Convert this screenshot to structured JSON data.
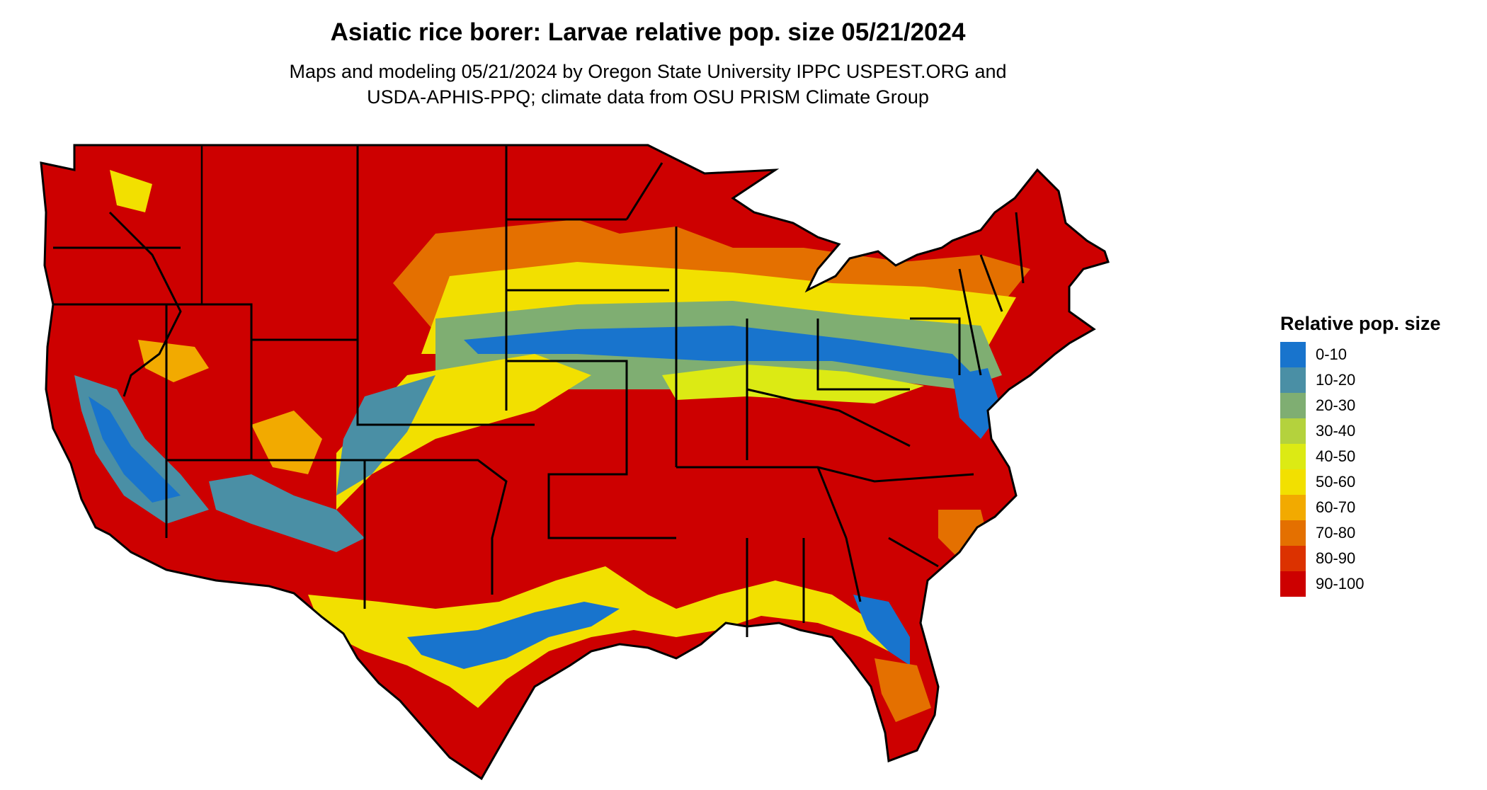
{
  "title": "Asiatic rice borer: Larvae relative pop. size 05/21/2024",
  "subtitle_line1": "Maps and modeling 05/21/2024 by Oregon State University IPPC USPEST.ORG and",
  "subtitle_line2": "USDA-APHIS-PPQ; climate data from OSU PRISM Climate Group",
  "map": {
    "region": "contiguous United States",
    "variable": "Larvae relative pop. size",
    "date": "05/21/2024",
    "boundary_color": "#000000",
    "background_color": "#ffffff"
  },
  "legend": {
    "title": "Relative pop. size",
    "placement": "right",
    "items": [
      {
        "label": "0-10",
        "color": "#1874cd"
      },
      {
        "label": "10-20",
        "color": "#4a8fa5"
      },
      {
        "label": "20-30",
        "color": "#7fae72"
      },
      {
        "label": "30-40",
        "color": "#b4d23d"
      },
      {
        "label": "40-50",
        "color": "#dcea14"
      },
      {
        "label": "50-60",
        "color": "#f2e000"
      },
      {
        "label": "60-70",
        "color": "#f2aa00"
      },
      {
        "label": "70-80",
        "color": "#e47000"
      },
      {
        "label": "80-90",
        "color": "#dc3200"
      },
      {
        "label": "90-100",
        "color": "#cd0000"
      }
    ]
  }
}
